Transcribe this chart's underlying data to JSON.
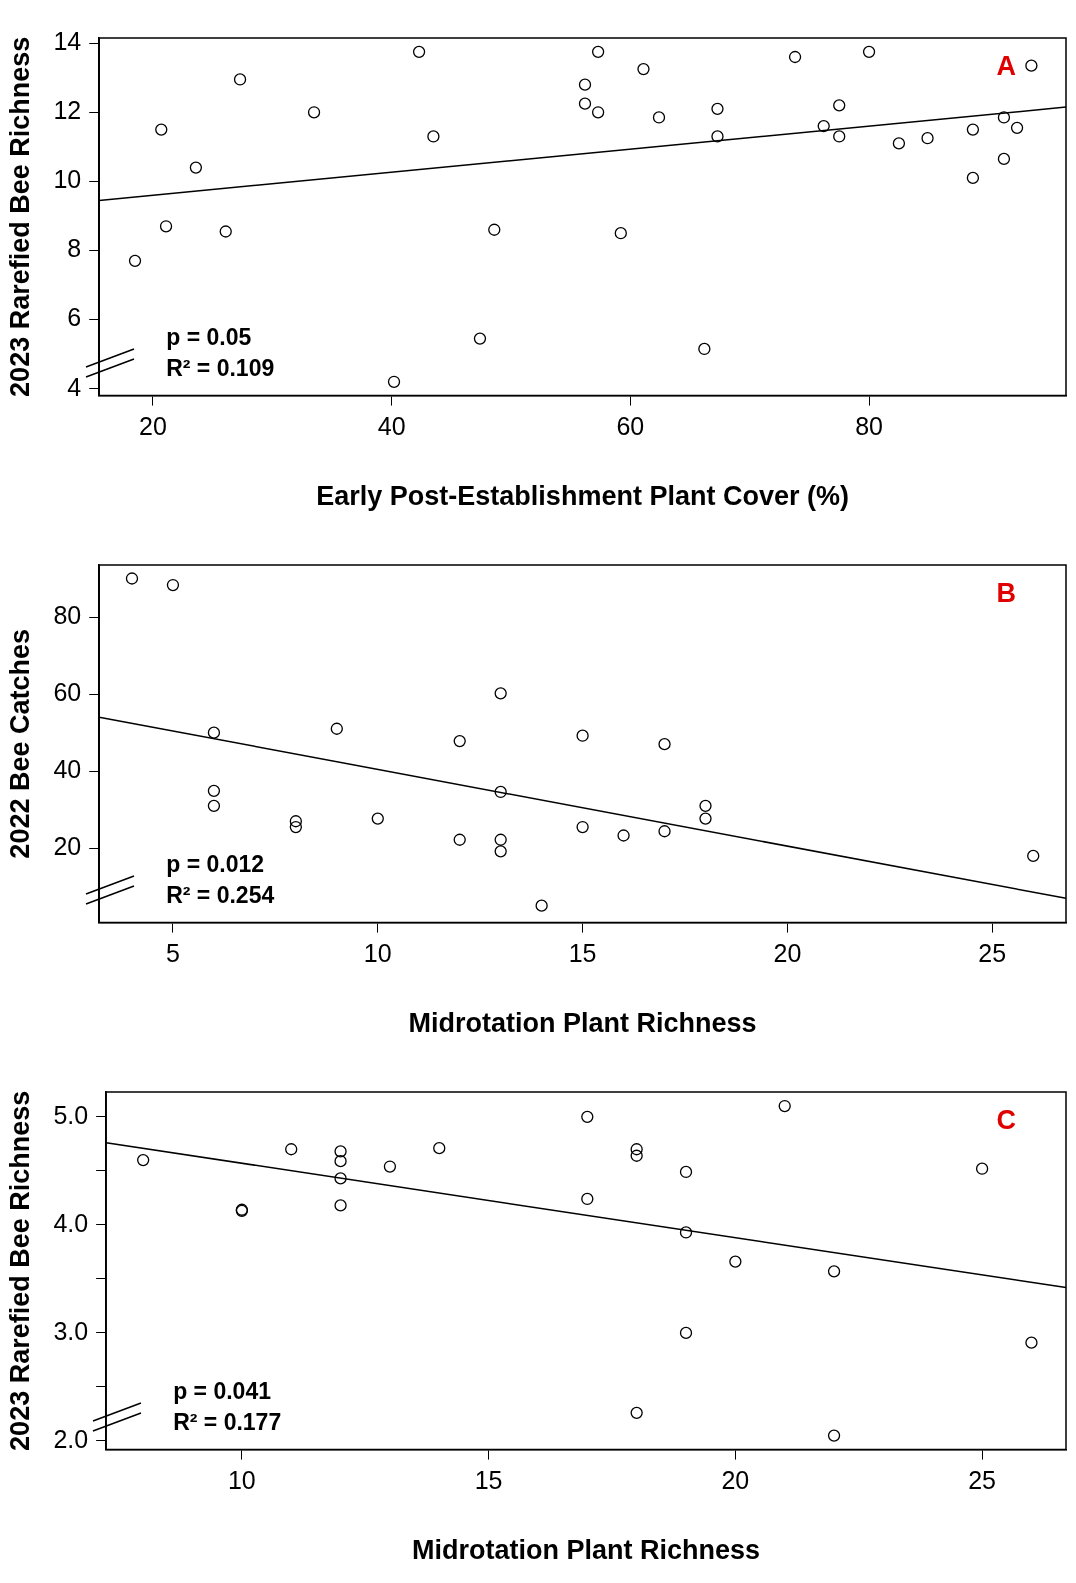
{
  "chart_data": [
    {
      "type": "scatter",
      "xlabel": "Early Post-Establishment Plant Cover (%)",
      "ylabel": "2023 Rarefied Bee Richness",
      "xlim": [
        15.5,
        96.5
      ],
      "ylim": [
        3.8,
        14.15
      ],
      "xticks": [
        20,
        40,
        60,
        80
      ],
      "yticks": [
        4,
        6,
        8,
        10,
        12,
        14
      ],
      "grid": false,
      "legend": false,
      "marker": "circle",
      "annotations": [
        "A",
        "p = 0.05",
        "R² = 0.109"
      ],
      "series": [
        {
          "type": "scatter",
          "color": "#000000",
          "x": [
            18.5,
            20.7,
            21.1,
            23.6,
            26.1,
            27.3,
            33.5,
            40.2,
            42.3,
            43.5,
            47.4,
            48.6,
            56.2,
            56.2,
            57.3,
            57.3,
            59.2,
            61.1,
            62.4,
            66.2,
            67.3,
            67.3,
            73.8,
            76.2,
            77.5,
            77.5,
            80.0,
            82.5,
            84.9,
            88.7,
            88.7,
            91.3,
            91.3,
            92.4,
            93.6
          ],
          "values": [
            7.7,
            11.5,
            8.7,
            10.4,
            8.55,
            12.95,
            12.0,
            4.2,
            13.75,
            11.3,
            5.45,
            8.6,
            12.8,
            12.25,
            13.75,
            12.0,
            8.5,
            13.25,
            11.85,
            5.15,
            12.1,
            11.3,
            13.6,
            11.6,
            12.2,
            11.3,
            13.75,
            11.1,
            11.25,
            11.5,
            10.1,
            11.85,
            10.65,
            11.55,
            13.35
          ]
        },
        {
          "type": "line",
          "color": "#000000",
          "marker": "none",
          "x": [
            15.5,
            96.5
          ],
          "values": [
            9.45,
            12.15
          ]
        }
      ]
    },
    {
      "type": "scatter",
      "xlabel": "Midrotation Plant Richness",
      "ylabel": "2022 Bee Catches",
      "xlim": [
        3.2,
        26.8
      ],
      "ylim": [
        0.7,
        93.5
      ],
      "xticks": [
        5,
        10,
        15,
        20,
        25
      ],
      "yticks": [
        20,
        40,
        60,
        80
      ],
      "grid": false,
      "legend": false,
      "marker": "circle",
      "annotations": [
        "B",
        "p = 0.012",
        "R² = 0.254"
      ],
      "series": [
        {
          "type": "scatter",
          "color": "#000000",
          "x": [
            4,
            5,
            6,
            6,
            6,
            8,
            8,
            9,
            10,
            12,
            12,
            13,
            13,
            13,
            13,
            14,
            15,
            15,
            16,
            17,
            17,
            18,
            18,
            26
          ],
          "values": [
            90,
            88.3,
            50,
            34.9,
            31,
            27,
            25.5,
            51,
            27.7,
            47.8,
            22.2,
            60.2,
            34.6,
            22.2,
            19.2,
            5.1,
            49.2,
            25.5,
            23.3,
            47,
            24.4,
            31,
            27.7,
            18
          ]
        },
        {
          "type": "line",
          "color": "#000000",
          "marker": "none",
          "x": [
            3.2,
            26.8
          ],
          "values": [
            54,
            7
          ]
        }
      ]
    },
    {
      "type": "scatter",
      "xlabel": "Midrotation Plant Richness",
      "ylabel": "2023 Rarefied Bee Richness",
      "xlim": [
        7.25,
        26.7
      ],
      "ylim": [
        1.92,
        5.23
      ],
      "xticks": [
        10,
        15,
        20,
        25
      ],
      "yticks": [
        {
          "value": 2.0,
          "label": "2.0"
        },
        {
          "value": 2.5,
          "label": null
        },
        {
          "value": 3.0,
          "label": "3.0"
        },
        {
          "value": 3.5,
          "label": null
        },
        {
          "value": 4.0,
          "label": "4.0"
        },
        {
          "value": 4.5,
          "label": null
        },
        {
          "value": 5.0,
          "label": "5.0"
        }
      ],
      "grid": false,
      "legend": false,
      "marker": "circle",
      "annotations": [
        "C",
        "p = 0.041",
        "R² = 0.177"
      ],
      "series": [
        {
          "type": "scatter",
          "color": "#000000",
          "x": [
            8,
            10,
            10,
            11,
            12,
            12,
            12,
            12,
            13,
            14,
            17,
            17,
            18,
            18,
            18,
            19,
            19,
            19,
            20,
            21,
            22,
            22,
            25,
            26
          ],
          "values": [
            4.6,
            4.14,
            4.13,
            4.7,
            4.68,
            4.59,
            4.43,
            4.18,
            4.54,
            4.71,
            5.0,
            4.24,
            4.7,
            4.64,
            2.26,
            4.49,
            3.93,
            3.0,
            3.66,
            5.1,
            3.57,
            2.05,
            4.52,
            2.91
          ]
        },
        {
          "type": "line",
          "color": "#000000",
          "marker": "none",
          "x": [
            7.25,
            26.7
          ],
          "values": [
            4.76,
            3.42
          ]
        }
      ]
    }
  ]
}
